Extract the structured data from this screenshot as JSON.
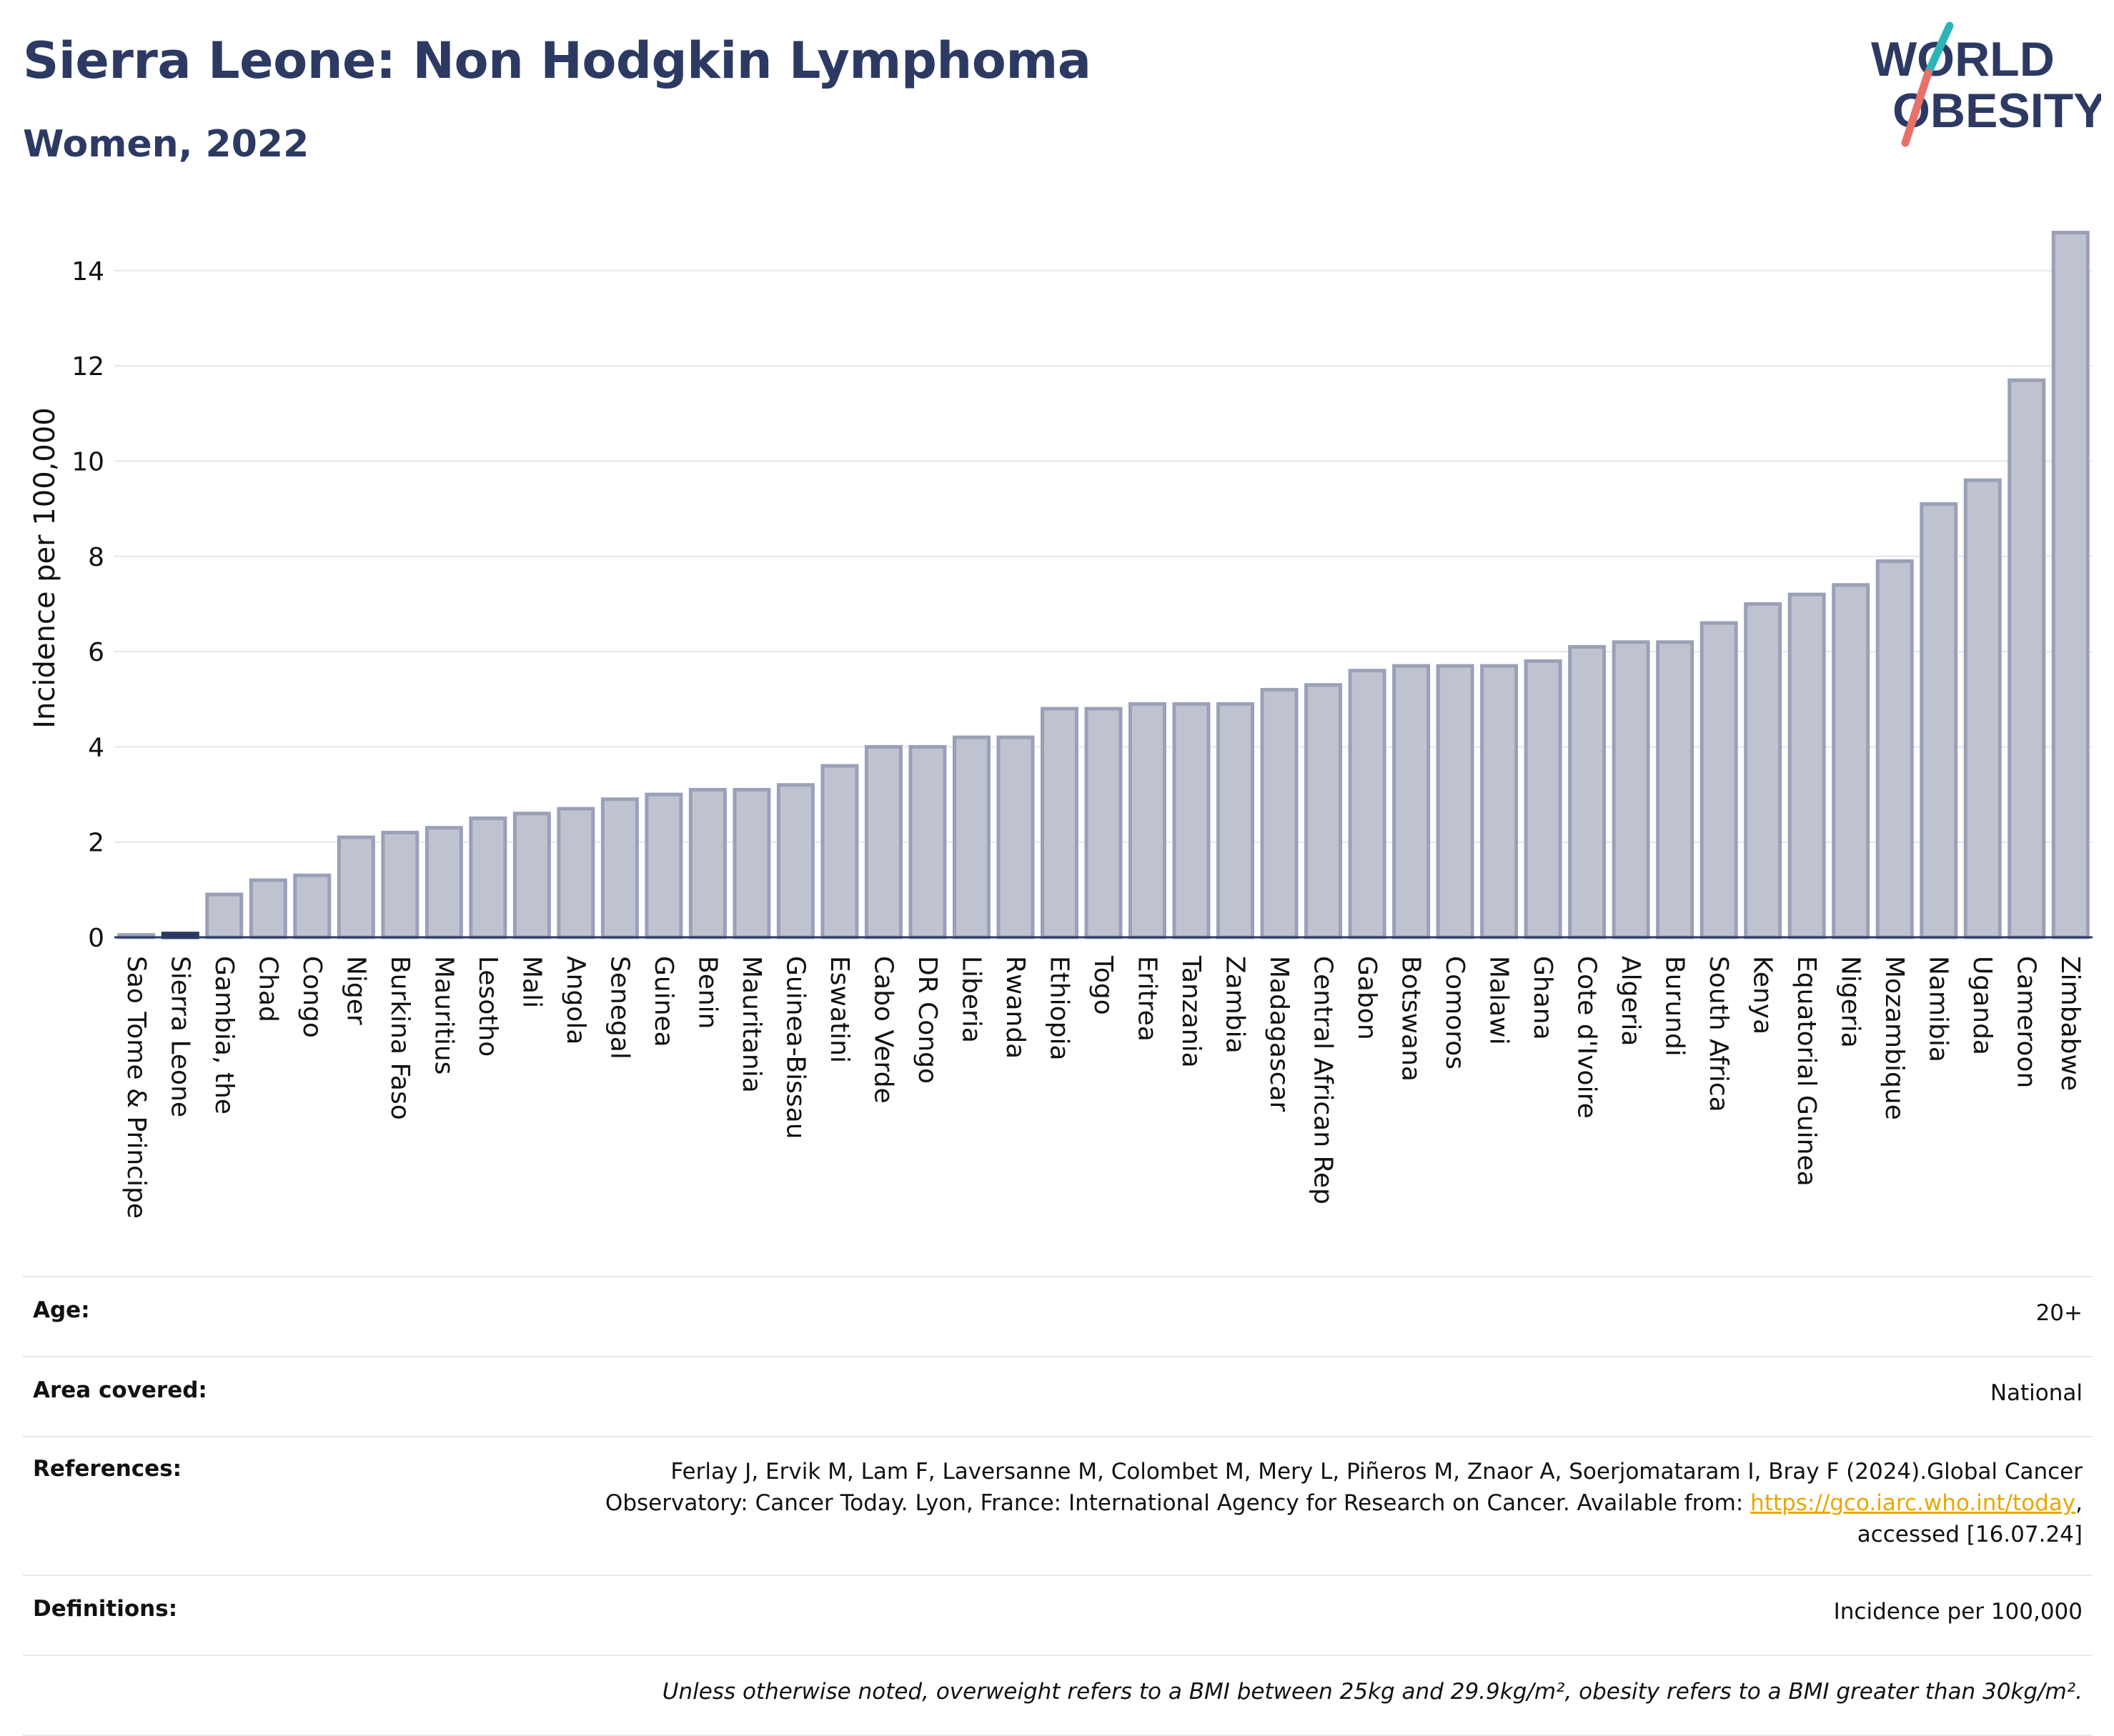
{
  "header": {
    "title": "Sierra Leone: Non Hodgkin Lymphoma",
    "subtitle": "Women, 2022"
  },
  "logo": {
    "line1": "WORLD",
    "line2": "OBESITY",
    "colors": {
      "text": "#2c3a63",
      "slash_teal": "#2bb5b8",
      "slash_coral": "#e8716a"
    }
  },
  "chart_data": {
    "type": "bar",
    "ylabel": "Incidence per 100,000",
    "ylim": [
      0,
      15
    ],
    "yticks": [
      0,
      2,
      4,
      6,
      8,
      10,
      12,
      14
    ],
    "grid": true,
    "highlight": "Sierra Leone",
    "colors": {
      "bar": "#bfc3d0",
      "bar_edge": "#9aa0b8",
      "highlight": "#2c3a63"
    },
    "categories": [
      "Sao Tome & Principe",
      "Sierra Leone",
      "Gambia, the",
      "Chad",
      "Congo",
      "Niger",
      "Burkina Faso",
      "Mauritius",
      "Lesotho",
      "Mali",
      "Angola",
      "Senegal",
      "Guinea",
      "Benin",
      "Mauritania",
      "Guinea-Bissau",
      "Eswatini",
      "Cabo Verde",
      "DR Congo",
      "Liberia",
      "Rwanda",
      "Ethiopia",
      "Togo",
      "Eritrea",
      "Tanzania",
      "Zambia",
      "Madagascar",
      "Central African Rep",
      "Gabon",
      "Botswana",
      "Comoros",
      "Malawi",
      "Ghana",
      "Cote d'Ivoire",
      "Algeria",
      "Burundi",
      "South Africa",
      "Kenya",
      "Equatorial Guinea",
      "Nigeria",
      "Mozambique",
      "Namibia",
      "Uganda",
      "Cameroon",
      "Zimbabwe"
    ],
    "values": [
      0.05,
      0.08,
      0.9,
      1.2,
      1.3,
      2.1,
      2.2,
      2.3,
      2.5,
      2.6,
      2.7,
      2.9,
      3.0,
      3.1,
      3.1,
      3.2,
      3.6,
      4.0,
      4.0,
      4.2,
      4.2,
      4.8,
      4.8,
      4.9,
      4.9,
      4.9,
      5.2,
      5.3,
      5.6,
      5.7,
      5.7,
      5.7,
      5.8,
      6.1,
      6.2,
      6.2,
      6.6,
      7.0,
      7.2,
      7.4,
      7.9,
      9.1,
      9.6,
      11.7,
      14.8
    ]
  },
  "info": {
    "age": {
      "label": "Age:",
      "value": "20+"
    },
    "area": {
      "label": "Area covered:",
      "value": "National"
    },
    "references": {
      "label": "References:",
      "line1": "Ferlay J, Ervik M, Lam F, Laversanne M, Colombet M, Mery L, Piñeros M, Znaor A, Soerjomataram I, Bray F (2024).Global Cancer",
      "line2_prefix": "Observatory: Cancer Today. Lyon, France: International Agency for Research on Cancer. Available from: ",
      "link": "https://gco.iarc.who.int/today",
      "line2_suffix": ",",
      "line3": "accessed [16.07.24]"
    },
    "definitions": {
      "label": "Definitions:",
      "value": "Incidence per 100,000"
    },
    "note": "Unless otherwise noted, overweight refers to a BMI between 25kg and 29.9kg/m², obesity refers to a BMI greater than 30kg/m²."
  }
}
